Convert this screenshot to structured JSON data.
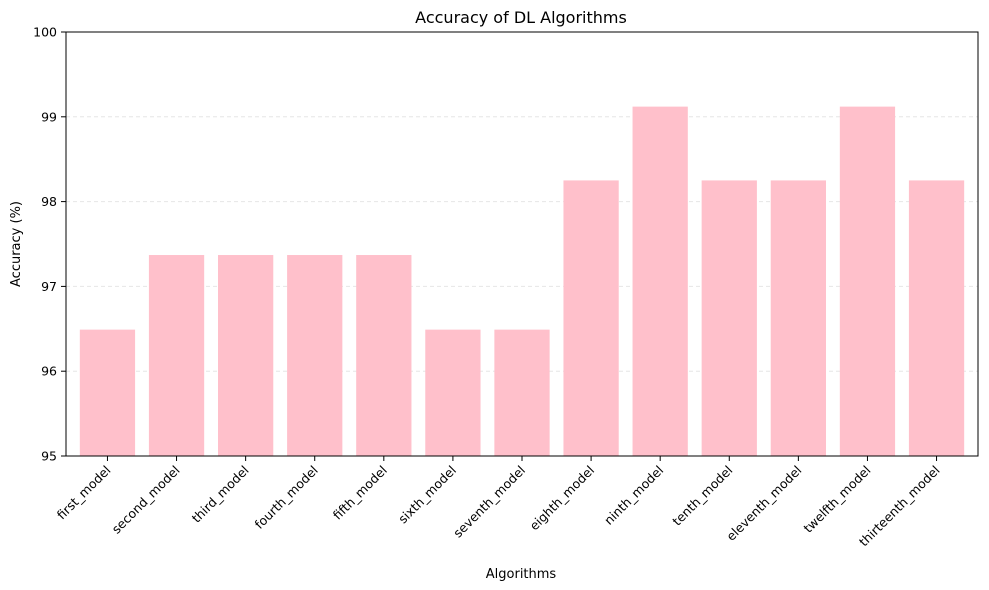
{
  "chart_data": {
    "type": "bar",
    "title": "Accuracy of DL Algorithms",
    "xlabel": "Algorithms",
    "ylabel": "Accuracy (%)",
    "categories": [
      "first_model",
      "second_model",
      "third_model",
      "fourth_model",
      "fifth_model",
      "sixth_model",
      "seventh_model",
      "eighth_model",
      "ninth_model",
      "tenth_model",
      "eleventh_model",
      "twelfth_model",
      "thirteenth_model"
    ],
    "values": [
      96.49,
      97.37,
      97.37,
      97.37,
      97.37,
      96.49,
      96.49,
      98.25,
      99.12,
      98.25,
      98.25,
      99.12,
      98.25
    ],
    "ylim": [
      95,
      100
    ],
    "yticks": [
      95,
      96,
      97,
      98,
      99,
      100
    ],
    "grid": "y-dashed",
    "legend": "none",
    "colors": {
      "bar": "#ffc0cb",
      "grid": "#e6e6e6",
      "axis": "#000000"
    }
  }
}
